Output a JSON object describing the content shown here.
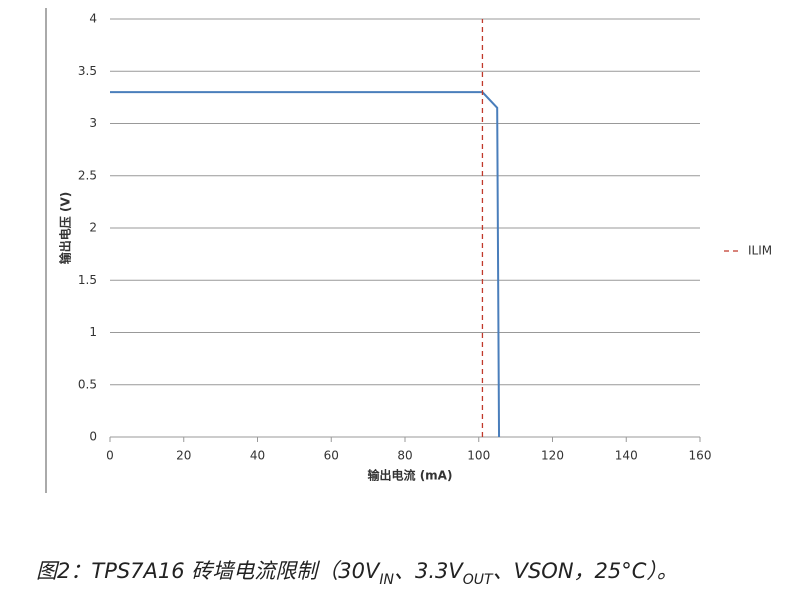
{
  "chart_data": {
    "type": "line",
    "xlabel": "输出电流 (mA)",
    "ylabel": "输出电压 (V)",
    "xlim": [
      0,
      160
    ],
    "xticks": [
      0,
      20,
      40,
      60,
      80,
      100,
      120,
      140,
      160
    ],
    "ylim": [
      0,
      4
    ],
    "yticks": [
      0,
      0.5,
      1,
      1.5,
      2,
      2.5,
      3,
      3.5,
      4
    ],
    "grid": true,
    "legend": "right",
    "series": [
      {
        "color": "#4a7ebb",
        "x": [
          0,
          101,
          105,
          105.5
        ],
        "values": [
          3.3,
          3.3,
          3.15,
          0
        ]
      },
      {
        "name": "ILIM",
        "color": "#c0392b",
        "dashed": true,
        "x": [
          101,
          101
        ],
        "values": [
          0,
          4
        ]
      }
    ]
  },
  "caption": [
    "图2：TPS7A16 砖墙电流限制（30V",
    "IN",
    "、3.3V",
    "OUT",
    "、VSON，25°C）。"
  ]
}
